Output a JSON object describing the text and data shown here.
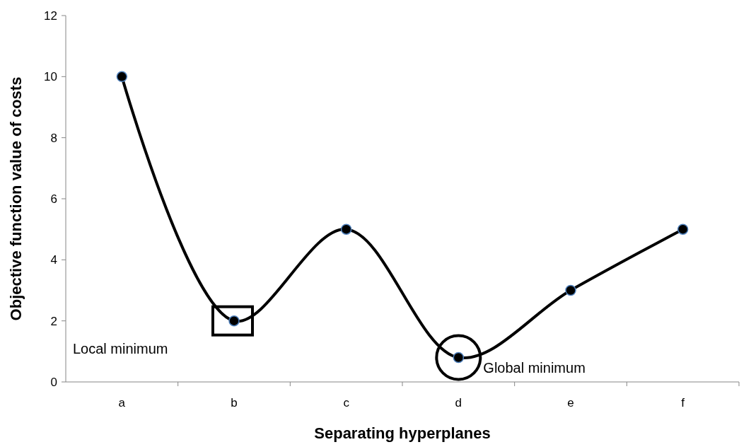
{
  "chart_data": {
    "type": "line",
    "xlabel": "Separating hyperplanes",
    "ylabel": "Objective function value of costs",
    "categories": [
      "a",
      "b",
      "c",
      "d",
      "e",
      "f"
    ],
    "series": [
      {
        "color": "#000000",
        "values": [
          10,
          2,
          5,
          0.8,
          3,
          5
        ]
      }
    ],
    "ylim": [
      0,
      12
    ],
    "yticks": [
      0,
      2,
      4,
      6,
      8,
      10,
      12
    ],
    "grid": false,
    "marker": "circle",
    "line_style": "solid",
    "annotations": [
      "Local minimum",
      {
        "text": "Global minimum",
        "x": "d",
        "y": 0.8
      }
    ]
  }
}
